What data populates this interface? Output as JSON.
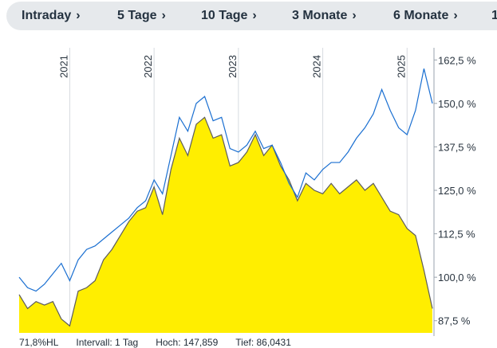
{
  "tabs": [
    {
      "label": "Intraday"
    },
    {
      "label": "5 Tage"
    },
    {
      "label": "10 Tage"
    },
    {
      "label": "3 Monate"
    },
    {
      "label": "6 Monate"
    },
    {
      "label": "1"
    }
  ],
  "colors": {
    "area_fill": "#ffee00",
    "line_dark": "#5c5c5c",
    "line_blue": "#1a6fd1",
    "tab_bg": "#e6e9ec"
  },
  "footer": {
    "left": "71,8%HL",
    "interval": "Intervall: 1 Tag",
    "high": "Hoch:  147,859",
    "low": "Tief: 86,0431"
  },
  "chart_data": {
    "type": "line",
    "x_tick_labels": [
      "2021",
      "2022",
      "2023",
      "2024",
      "2025"
    ],
    "y_tick_labels": [
      "162,5 %",
      "150,0 %",
      "137,5 %",
      "125,0 %",
      "112,5 %",
      "100,0 %",
      "87,5 %"
    ],
    "ylim": [
      84,
      166
    ],
    "y_ticks": [
      162.5,
      150.0,
      137.5,
      125.0,
      112.5,
      100.0,
      87.5
    ],
    "xlim": [
      2020.4,
      2025.3
    ],
    "x_ticks": [
      2021,
      2022,
      2023,
      2024,
      2025
    ],
    "series": [
      {
        "style": "area",
        "x": [
          2020.4,
          2020.5,
          2020.6,
          2020.7,
          2020.8,
          2020.9,
          2021.0,
          2021.1,
          2021.2,
          2021.3,
          2021.4,
          2021.5,
          2021.6,
          2021.7,
          2021.8,
          2021.9,
          2022.0,
          2022.1,
          2022.2,
          2022.3,
          2022.4,
          2022.5,
          2022.6,
          2022.7,
          2022.8,
          2022.9,
          2023.0,
          2023.1,
          2023.2,
          2023.3,
          2023.4,
          2023.5,
          2023.6,
          2023.7,
          2023.8,
          2023.9,
          2024.0,
          2024.1,
          2024.2,
          2024.3,
          2024.4,
          2024.5,
          2024.6,
          2024.7,
          2024.8,
          2024.9,
          2025.0,
          2025.1,
          2025.2,
          2025.3
        ],
        "values": [
          95,
          91,
          93,
          92,
          93,
          88,
          86,
          96,
          97,
          99,
          105,
          108,
          112,
          116,
          119,
          120,
          126,
          118,
          131,
          140,
          135,
          144,
          146,
          140,
          141,
          132,
          133,
          136,
          141,
          135,
          138,
          132,
          128,
          122,
          127,
          125,
          124,
          127,
          124,
          126,
          128,
          125,
          127,
          123,
          119,
          118,
          114,
          112,
          102,
          91
        ]
      },
      {
        "style": "line",
        "x": [
          2020.4,
          2020.5,
          2020.6,
          2020.7,
          2020.8,
          2020.9,
          2021.0,
          2021.1,
          2021.2,
          2021.3,
          2021.4,
          2021.5,
          2021.6,
          2021.7,
          2021.8,
          2021.9,
          2022.0,
          2022.1,
          2022.2,
          2022.3,
          2022.4,
          2022.5,
          2022.6,
          2022.7,
          2022.8,
          2022.9,
          2023.0,
          2023.1,
          2023.2,
          2023.3,
          2023.4,
          2023.5,
          2023.6,
          2023.7,
          2023.8,
          2023.9,
          2024.0,
          2024.1,
          2024.2,
          2024.3,
          2024.4,
          2024.5,
          2024.6,
          2024.7,
          2024.8,
          2024.9,
          2025.0,
          2025.1,
          2025.2,
          2025.3
        ],
        "values": [
          100,
          97,
          96,
          98,
          101,
          104,
          99,
          105,
          108,
          109,
          111,
          113,
          115,
          117,
          120,
          122,
          128,
          124,
          135,
          146,
          142,
          150,
          152,
          145,
          146,
          137,
          136,
          138,
          142,
          137,
          138,
          133,
          127,
          123,
          130,
          128,
          131,
          133,
          133,
          136,
          140,
          143,
          147,
          154,
          148,
          143,
          141,
          148,
          160,
          150
        ]
      }
    ]
  }
}
